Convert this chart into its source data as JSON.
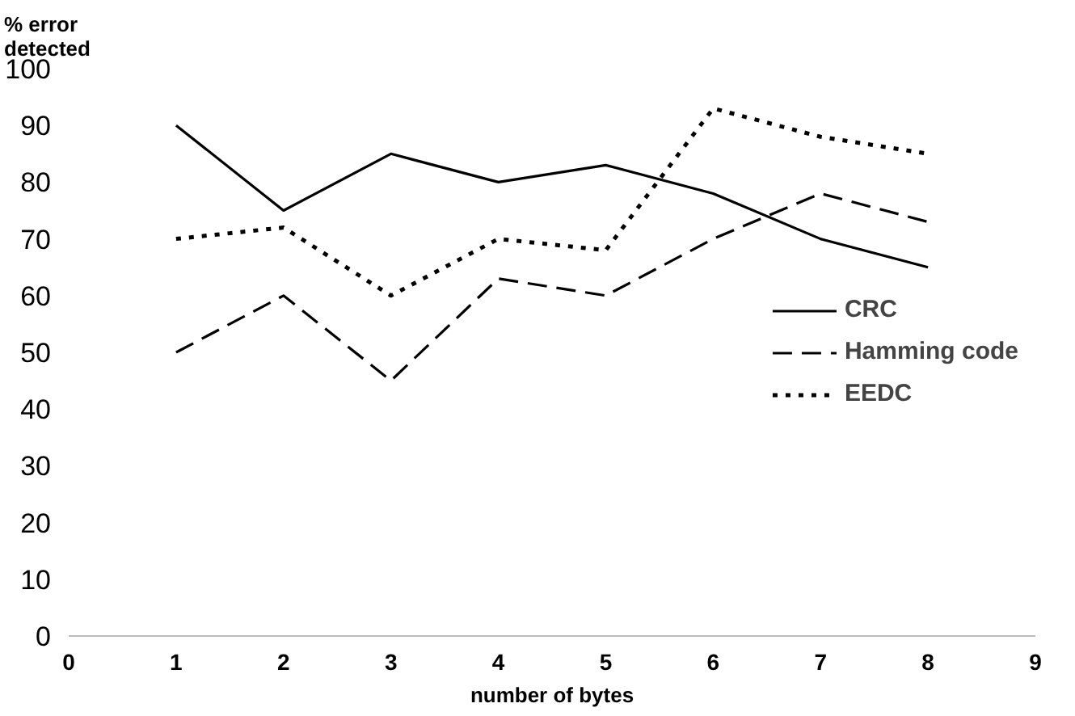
{
  "chart_data": {
    "type": "line",
    "xlabel": "number of bytes",
    "ylabel": "% error\ndetected",
    "x": [
      1,
      2,
      3,
      4,
      5,
      6,
      7,
      8
    ],
    "series": [
      {
        "name": "CRC",
        "color": "#000000",
        "line_style": "solid",
        "values": [
          90,
          75,
          85,
          80,
          83,
          78,
          70,
          65
        ]
      },
      {
        "name": "Hamming code",
        "color": "#000000",
        "line_style": "dashed",
        "values": [
          50,
          60,
          45,
          63,
          60,
          70,
          78,
          73
        ]
      },
      {
        "name": "EEDC",
        "color": "#000000",
        "line_style": "dotted",
        "values": [
          70,
          72,
          60,
          70,
          68,
          93,
          88,
          85
        ]
      }
    ],
    "xlim": [
      0,
      9
    ],
    "xticks": [
      0,
      1,
      2,
      3,
      4,
      5,
      6,
      7,
      8,
      9
    ],
    "ylim": [
      0,
      100
    ],
    "yticks": [
      0,
      10,
      20,
      30,
      40,
      50,
      60,
      70,
      80,
      90,
      100
    ],
    "grid": false,
    "legend": "right"
  }
}
